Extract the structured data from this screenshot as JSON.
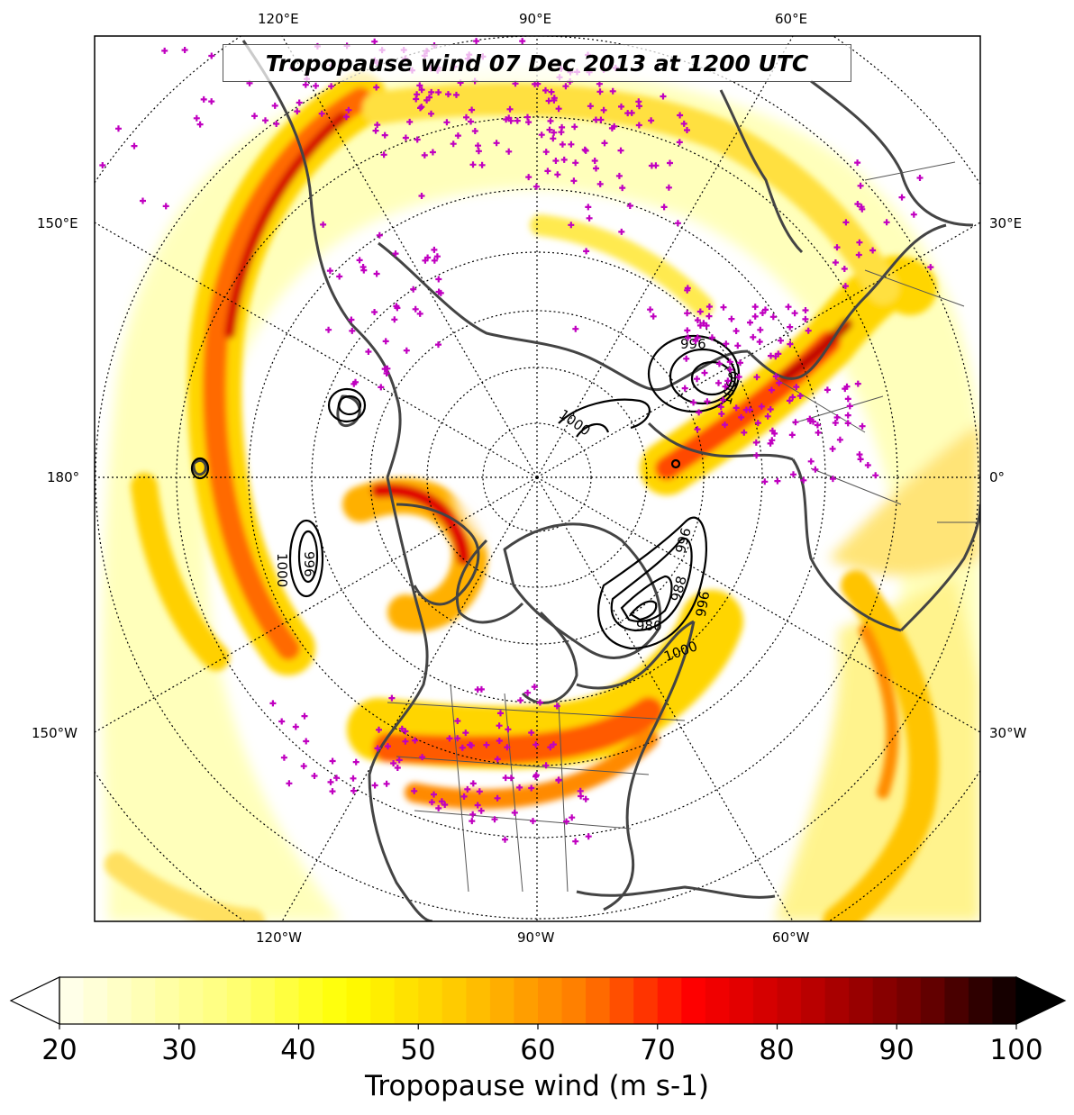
{
  "map": {
    "title": "Tropopause wind 07 Dec 2013 at 1200 UTC",
    "projection": "north-polar-stereographic",
    "longitude_labels": {
      "top": [
        "120°E",
        "90°E",
        "60°E"
      ],
      "left": [
        "150°E",
        "180°",
        "150°W"
      ],
      "right": [
        "30°E",
        "0°",
        "30°W"
      ],
      "bottom": [
        "120°W",
        "90°W",
        "60°W"
      ]
    },
    "pressure_contours": {
      "levels": [
        "1000",
        "996",
        "1000",
        "996",
        "980",
        "988",
        "996",
        "1000",
        "996",
        "1000"
      ]
    },
    "colors": {
      "wind_low": "#ffffc8",
      "wind_mid": "#ffff00",
      "wind_high": "#ff0000",
      "wind_max": "#000000",
      "coastline": "#444444",
      "stations": "#c000c0"
    }
  },
  "colorbar": {
    "label": "Tropopause wind (m s-1)",
    "ticks": [
      "20",
      "30",
      "40",
      "50",
      "60",
      "70",
      "80",
      "90",
      "100"
    ],
    "min": 20,
    "max": 100,
    "extend": "both"
  }
}
